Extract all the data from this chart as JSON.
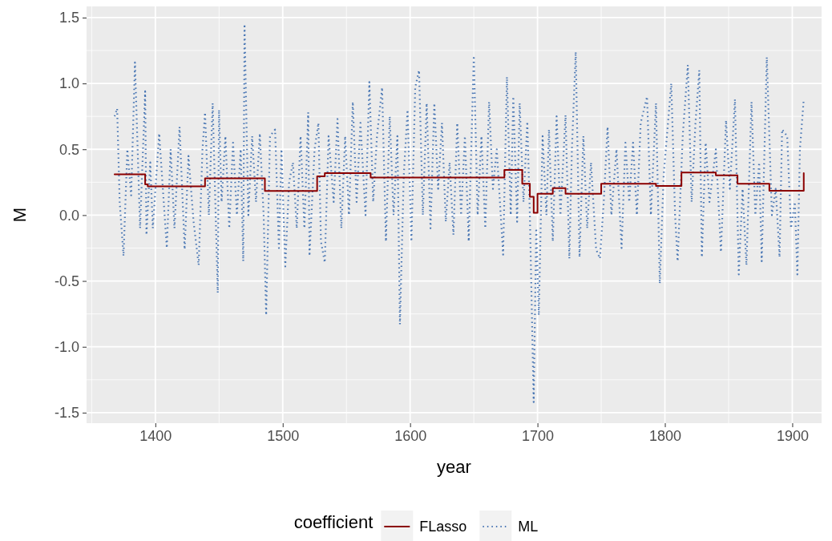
{
  "chart_data": {
    "type": "line",
    "xlabel": "year",
    "ylabel": "M",
    "legend_title": "coefficient",
    "legend": "bottom",
    "grid": true,
    "xlim": [
      1346,
      1923
    ],
    "xticks": [
      1400,
      1500,
      1600,
      1700,
      1800,
      1900
    ],
    "ylim": [
      -1.58,
      1.585
    ],
    "yticks": [
      {
        "value": -1.5,
        "label": "-1.5"
      },
      {
        "value": -1,
        "label": "-1.0"
      },
      {
        "value": -0.5,
        "label": "-0.5"
      },
      {
        "value": 0,
        "label": "0.0"
      },
      {
        "value": 0.5,
        "label": "0.5"
      },
      {
        "value": 1,
        "label": "1.0"
      },
      {
        "value": 1.5,
        "label": "1.5"
      }
    ],
    "series": [
      {
        "name": "FLasso",
        "type": "step",
        "color": "#8b0000",
        "line_style": "solid",
        "x": [
          1368,
          1392,
          1394,
          1439,
          1486,
          1527,
          1533,
          1569,
          1674,
          1688,
          1694,
          1697,
          1700,
          1712,
          1722,
          1750,
          1793,
          1813,
          1840,
          1857,
          1882,
          1909
        ],
        "values": [
          0.31,
          0.234,
          0.218,
          0.279,
          0.183,
          0.295,
          0.319,
          0.285,
          0.343,
          0.238,
          0.14,
          0.018,
          0.163,
          0.205,
          0.163,
          0.238,
          0.221,
          0.323,
          0.303,
          0.238,
          0.185,
          0.319
        ]
      },
      {
        "name": "ML",
        "color": "#4a77b4",
        "line_style": "dotted",
        "x": [
          1368,
          1370,
          1372,
          1375,
          1378,
          1381,
          1384,
          1388,
          1392,
          1393,
          1396,
          1398,
          1403,
          1409,
          1412,
          1415,
          1419,
          1423,
          1426,
          1430,
          1434,
          1437,
          1439,
          1442,
          1445,
          1449,
          1450,
          1452,
          1455,
          1458,
          1461,
          1464,
          1467,
          1469,
          1470,
          1473,
          1476,
          1479,
          1482,
          1485,
          1487,
          1490,
          1494,
          1497,
          1499,
          1502,
          1505,
          1508,
          1511,
          1514,
          1517,
          1520,
          1521,
          1525,
          1528,
          1530,
          1533,
          1536,
          1540,
          1543,
          1546,
          1549,
          1552,
          1555,
          1558,
          1561,
          1565,
          1568,
          1571,
          1574,
          1578,
          1581,
          1584,
          1587,
          1590,
          1592,
          1595,
          1598,
          1601,
          1604,
          1607,
          1610,
          1613,
          1616,
          1619,
          1622,
          1625,
          1628,
          1631,
          1634,
          1637,
          1640,
          1643,
          1646,
          1650,
          1653,
          1656,
          1659,
          1662,
          1665,
          1668,
          1673,
          1676,
          1679,
          1681,
          1684,
          1686,
          1689,
          1692,
          1694,
          1697,
          1699,
          1701,
          1704,
          1707,
          1709,
          1712,
          1715,
          1718,
          1722,
          1725,
          1727,
          1730,
          1733,
          1736,
          1739,
          1742,
          1746,
          1749,
          1752,
          1755,
          1758,
          1762,
          1766,
          1769,
          1772,
          1775,
          1778,
          1781,
          1786,
          1789,
          1793,
          1796,
          1799,
          1805,
          1808,
          1810,
          1814,
          1818,
          1821,
          1824,
          1827,
          1829,
          1832,
          1835,
          1840,
          1844,
          1848,
          1851,
          1855,
          1858,
          1861,
          1864,
          1868,
          1871,
          1874,
          1876,
          1880,
          1884,
          1887,
          1890,
          1892,
          1896,
          1899,
          1902,
          1904,
          1906,
          1909
        ],
        "values": [
          0.75,
          0.81,
          0.1,
          -0.31,
          0.5,
          0.15,
          1.16,
          -0.1,
          0.94,
          -0.15,
          0.4,
          -0.1,
          0.62,
          -0.25,
          0.5,
          -0.1,
          0.67,
          -0.26,
          0.45,
          -0.05,
          -0.38,
          0.5,
          0.78,
          0.0,
          0.85,
          -0.59,
          0.8,
          0.1,
          0.6,
          -0.1,
          0.55,
          0.0,
          0.5,
          -0.35,
          1.45,
          0.0,
          0.6,
          0.1,
          0.62,
          0.0,
          -0.76,
          0.6,
          0.65,
          -0.25,
          0.5,
          -0.39,
          0.25,
          0.4,
          -0.1,
          0.6,
          -0.1,
          0.78,
          -0.31,
          0.5,
          0.7,
          -0.2,
          -0.36,
          0.6,
          0.1,
          0.73,
          -0.1,
          0.6,
          0.0,
          0.86,
          0.1,
          0.7,
          0.0,
          1.01,
          0.1,
          0.6,
          0.97,
          -0.2,
          0.75,
          0.0,
          0.6,
          -0.83,
          0.3,
          0.8,
          -0.2,
          0.97,
          1.1,
          0.0,
          0.85,
          -0.1,
          0.85,
          0.2,
          0.7,
          -0.05,
          0.4,
          -0.15,
          0.7,
          0.0,
          0.6,
          -0.2,
          1.21,
          0.0,
          0.6,
          -0.1,
          0.86,
          0.2,
          0.5,
          -0.3,
          1.05,
          0.0,
          0.9,
          -0.05,
          0.85,
          0.1,
          0.71,
          0.0,
          -1.42,
          -0.1,
          -0.76,
          0.6,
          0.0,
          0.65,
          -0.2,
          0.75,
          0.0,
          0.76,
          -0.33,
          0.5,
          1.24,
          -0.32,
          0.6,
          -0.1,
          0.4,
          -0.26,
          -0.33,
          0.1,
          0.67,
          0.0,
          0.5,
          -0.25,
          0.55,
          0.1,
          0.55,
          0.0,
          0.7,
          0.9,
          0.0,
          0.85,
          -0.52,
          0.3,
          1.0,
          0.0,
          -0.35,
          0.6,
          1.14,
          0.1,
          0.7,
          1.1,
          -0.32,
          0.55,
          0.1,
          0.5,
          -0.28,
          0.72,
          0.2,
          0.88,
          -0.45,
          0.2,
          -0.38,
          0.86,
          0.0,
          0.4,
          -0.35,
          1.2,
          0.0,
          0.2,
          -0.32,
          0.65,
          0.6,
          -0.1,
          0.1,
          -0.45,
          0.5,
          0.88
        ]
      }
    ]
  }
}
